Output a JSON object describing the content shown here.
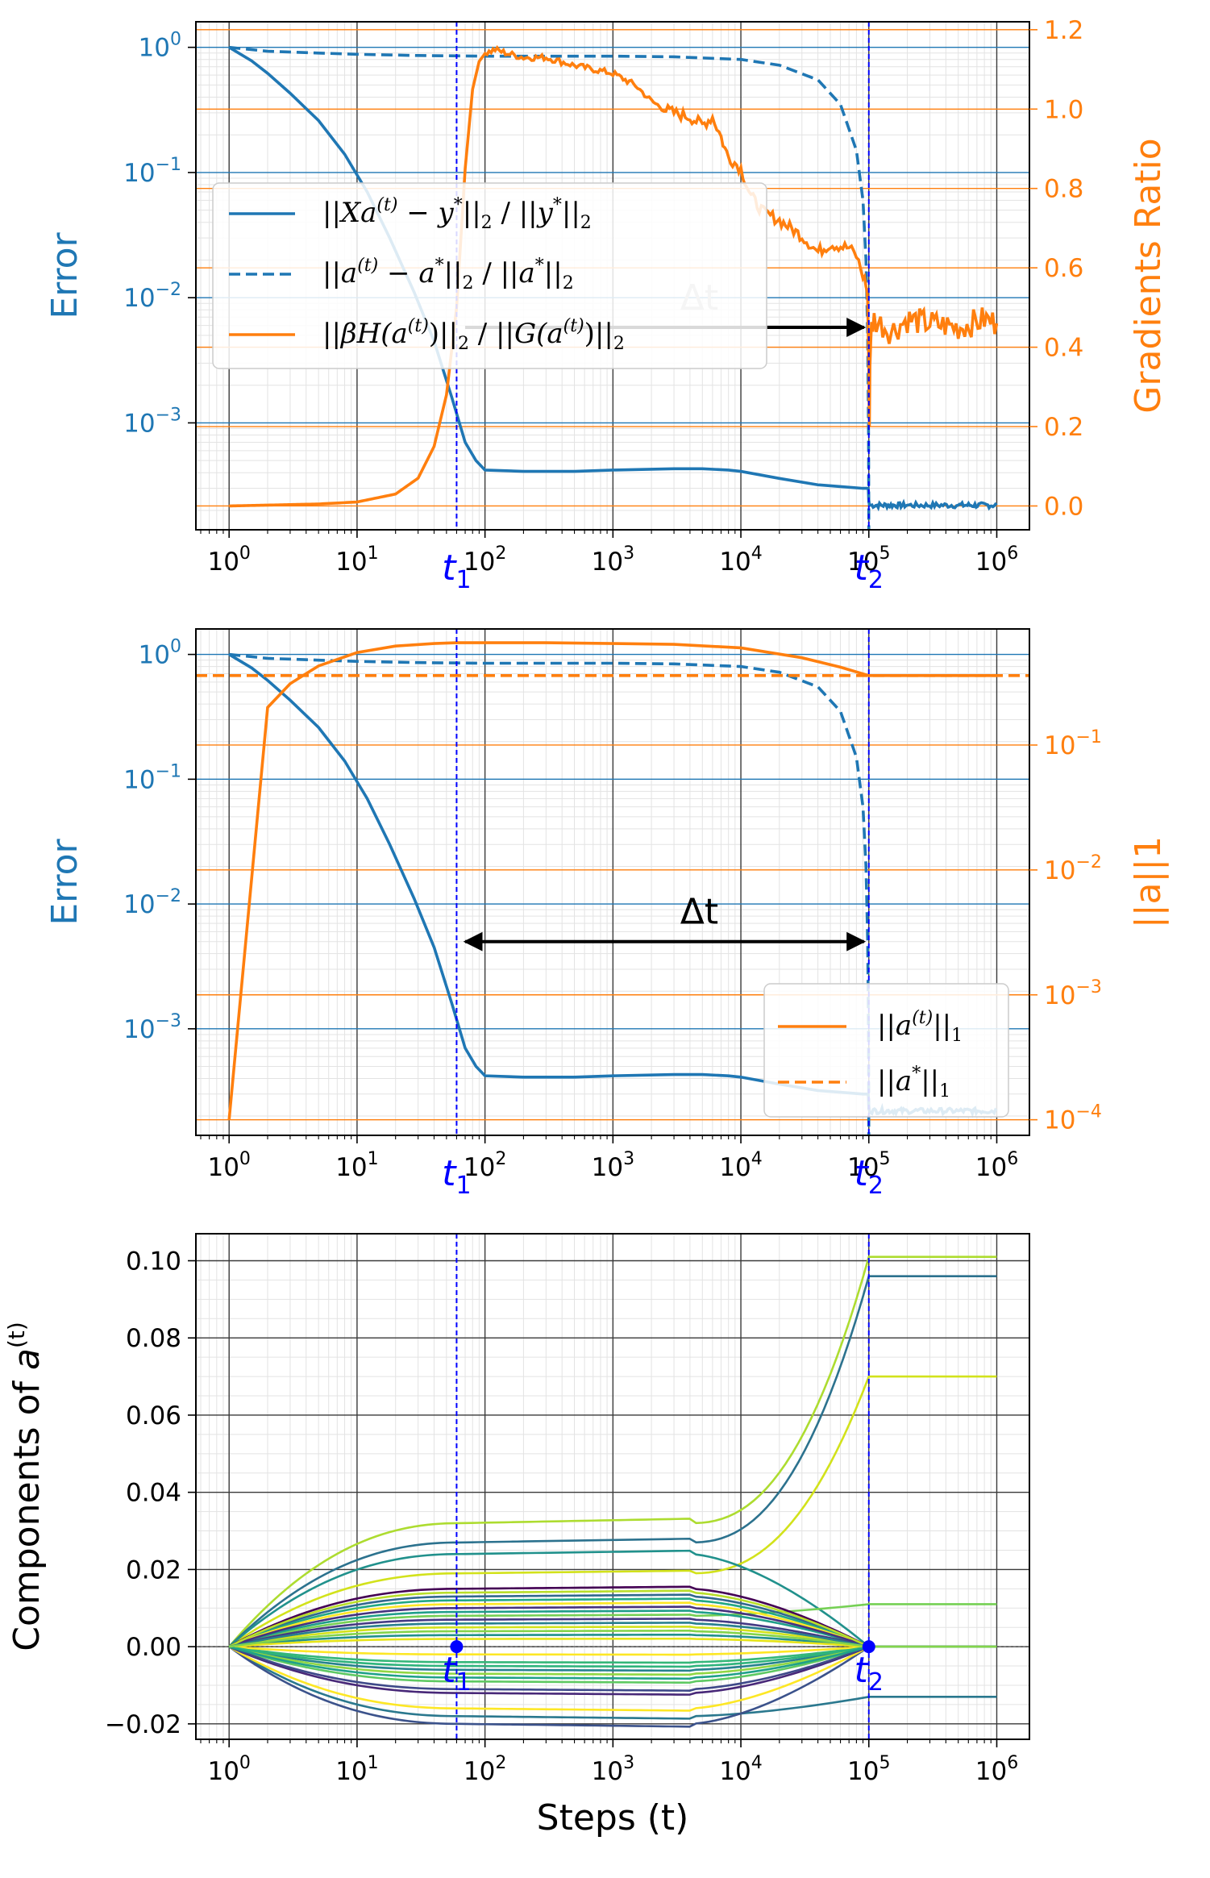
{
  "colors": {
    "blue": "#1f77b4",
    "orange": "#ff7f0e",
    "marker": "#0000ff",
    "grid_major": "#3a3a3a",
    "grid_minor": "#e3e3e3"
  },
  "chart_data": [
    {
      "type": "line",
      "xscale": "log",
      "xlim": [
        0.55,
        1800000
      ],
      "y_left": {
        "label": "Error",
        "scale": "log",
        "lim": [
          0.00014,
          1.6
        ],
        "ticks": [
          1,
          0.1,
          0.01,
          0.001
        ],
        "tick_labels": [
          "10^0",
          "10^-1",
          "10^-2",
          "10^-3"
        ]
      },
      "y_right": {
        "label": "Gradients Ratio",
        "scale": "linear",
        "lim": [
          -0.06,
          1.22
        ],
        "ticks": [
          0,
          0.2,
          0.4,
          0.6,
          0.8,
          1.0,
          1.2
        ],
        "tick_labels": [
          "0.0",
          "0.2",
          "0.4",
          "0.6",
          "0.8",
          "1.0",
          "1.2"
        ]
      },
      "x_ticks": [
        1,
        10,
        100,
        1000,
        10000,
        100000,
        1000000
      ],
      "x_tick_labels": [
        "10^0",
        "10^1",
        "10^2",
        "10^3",
        "10^4",
        "10^5",
        "10^6"
      ],
      "vlines": [
        {
          "label": "t1",
          "x": 60
        },
        {
          "label": "t2",
          "x": 100000
        }
      ],
      "arrow": {
        "label": "Δt",
        "x_from": 70,
        "x_to": 100000,
        "y": 0.45,
        "axis": "right"
      },
      "legend": {
        "position": "center-left",
        "entries": [
          "||Xa(t) − y*||2 / ||y*||2",
          "||a(t) − a*||2 / ||a*||2",
          "||βH(a(t))||2 / ||G(a(t))||2"
        ]
      },
      "series": [
        {
          "name": "||Xa(t) − y*||2 / ||y*||2",
          "axis": "left",
          "style": "solid",
          "x": [
            1,
            1.5,
            2,
            3,
            5,
            8,
            12,
            18,
            28,
            40,
            55,
            70,
            85,
            100,
            200,
            500,
            1000,
            3000,
            5000,
            8000,
            10000,
            20000,
            40000,
            60000,
            90000,
            99000,
            100000,
            101000,
            200000,
            500000,
            1000000
          ],
          "y": [
            1,
            0.78,
            0.62,
            0.43,
            0.26,
            0.14,
            0.07,
            0.03,
            0.011,
            0.0045,
            0.0016,
            0.0007,
            0.0005,
            0.00042,
            0.00041,
            0.00041,
            0.00042,
            0.00043,
            0.00043,
            0.00042,
            0.00041,
            0.00036,
            0.00032,
            0.00031,
            0.0003,
            0.0003,
            0.00024,
            0.00022,
            0.00022,
            0.00022,
            0.00022
          ]
        },
        {
          "name": "||a(t) − a*||2 / ||a*||2",
          "axis": "left",
          "style": "dashed",
          "x": [
            1,
            2,
            5,
            10,
            30,
            100,
            300,
            1000,
            3000,
            10000,
            20000,
            40000,
            60000,
            80000,
            90000,
            95000,
            98000,
            99500,
            100000
          ],
          "y": [
            1,
            0.93,
            0.9,
            0.88,
            0.86,
            0.85,
            0.85,
            0.85,
            0.84,
            0.8,
            0.72,
            0.55,
            0.35,
            0.15,
            0.06,
            0.02,
            0.005,
            0.0008,
            0.00014
          ]
        },
        {
          "name": "||βH(a(t))||2 / ||G(a(t))||2",
          "axis": "right",
          "style": "solid",
          "x": [
            1,
            5,
            10,
            20,
            30,
            40,
            50,
            60,
            70,
            80,
            90,
            100,
            120,
            150,
            200,
            300,
            500,
            1000,
            1500,
            2000,
            2500,
            3000,
            4000,
            5000,
            6000,
            7000,
            7500,
            8000,
            10000,
            12000,
            15000,
            20000,
            30000,
            40000,
            50000,
            70000,
            80000,
            90000,
            95000,
            98000,
            100000,
            101000,
            102000,
            105000,
            110000,
            150000,
            200000,
            300000,
            500000,
            800000,
            1000000
          ],
          "y": [
            0.0,
            0.005,
            0.01,
            0.03,
            0.07,
            0.15,
            0.28,
            0.5,
            0.85,
            1.05,
            1.12,
            1.14,
            1.15,
            1.14,
            1.13,
            1.13,
            1.11,
            1.09,
            1.06,
            1.02,
            1.0,
            0.99,
            0.98,
            0.96,
            0.98,
            0.93,
            0.9,
            0.88,
            0.85,
            0.78,
            0.74,
            0.72,
            0.68,
            0.64,
            0.66,
            0.65,
            0.63,
            0.58,
            0.56,
            0.52,
            0.33,
            0.2,
            0.36,
            0.45,
            0.47,
            0.44,
            0.47,
            0.46,
            0.45,
            0.47,
            0.46
          ]
        }
      ]
    },
    {
      "type": "line",
      "xscale": "log",
      "xlim": [
        0.55,
        1800000
      ],
      "y_left": {
        "label": "Error",
        "scale": "log",
        "lim": [
          0.00014,
          1.6
        ],
        "ticks": [
          1,
          0.1,
          0.01,
          0.001
        ],
        "tick_labels": [
          "10^0",
          "10^-1",
          "10^-2",
          "10^-3"
        ]
      },
      "y_right": {
        "label": "||a||1",
        "scale": "log",
        "lim": [
          7.5e-05,
          0.85
        ],
        "ticks": [
          0.1,
          0.01,
          0.001,
          0.0001
        ],
        "tick_labels": [
          "10^-1",
          "10^-2",
          "10^-3",
          "10^-4"
        ]
      },
      "x_ticks": [
        1,
        10,
        100,
        1000,
        10000,
        100000,
        1000000
      ],
      "x_tick_labels": [
        "10^0",
        "10^1",
        "10^2",
        "10^3",
        "10^4",
        "10^5",
        "10^6"
      ],
      "vlines": [
        {
          "label": "t1",
          "x": 60
        },
        {
          "label": "t2",
          "x": 100000
        }
      ],
      "arrow": {
        "label": "Δt",
        "x_from": 70,
        "x_to": 100000,
        "y": 0.005,
        "axis": "left"
      },
      "legend": {
        "position": "lower-right",
        "entries": [
          "||a(t)||1",
          "||a*||1"
        ]
      },
      "series": [
        {
          "name": "error_solid",
          "axis": "left",
          "style": "solid",
          "x": [
            1,
            1.5,
            2,
            3,
            5,
            8,
            12,
            18,
            28,
            40,
            55,
            70,
            85,
            100,
            200,
            500,
            1000,
            3000,
            5000,
            8000,
            10000,
            20000,
            40000,
            60000,
            90000,
            99000,
            100000,
            101000,
            200000,
            500000,
            1000000
          ],
          "y": [
            1,
            0.78,
            0.62,
            0.43,
            0.26,
            0.14,
            0.07,
            0.03,
            0.011,
            0.0045,
            0.0016,
            0.0007,
            0.0005,
            0.00042,
            0.00041,
            0.00041,
            0.00042,
            0.00043,
            0.00043,
            0.00042,
            0.00041,
            0.00036,
            0.00032,
            0.00031,
            0.0003,
            0.0003,
            0.00024,
            0.00022,
            0.00022,
            0.00022,
            0.00022
          ]
        },
        {
          "name": "error_dashed",
          "axis": "left",
          "style": "dashed",
          "x": [
            1,
            2,
            5,
            10,
            30,
            100,
            300,
            1000,
            3000,
            10000,
            20000,
            40000,
            60000,
            80000,
            90000,
            95000,
            98000,
            99500,
            100000
          ],
          "y": [
            1,
            0.93,
            0.9,
            0.88,
            0.86,
            0.85,
            0.85,
            0.85,
            0.84,
            0.8,
            0.72,
            0.55,
            0.35,
            0.15,
            0.06,
            0.02,
            0.005,
            0.0008,
            0.00014
          ]
        },
        {
          "name": "||a(t)||1",
          "axis": "right",
          "style": "solid",
          "x": [
            1,
            2,
            3,
            5,
            10,
            20,
            40,
            60,
            100,
            300,
            1000,
            3000,
            10000,
            30000,
            60000,
            100000,
            1000000
          ],
          "y": [
            0.0001,
            0.2,
            0.31,
            0.43,
            0.55,
            0.62,
            0.65,
            0.66,
            0.66,
            0.66,
            0.65,
            0.64,
            0.6,
            0.5,
            0.42,
            0.36,
            0.36
          ]
        },
        {
          "name": "||a*||1",
          "axis": "right",
          "style": "dashed",
          "x": [
            0.55,
            1800000
          ],
          "y": [
            0.36,
            0.36
          ]
        }
      ]
    },
    {
      "type": "line",
      "xscale": "log",
      "xlim": [
        0.55,
        1800000
      ],
      "xlabel": "Steps (t)",
      "y_left": {
        "label": "Components of a(t)",
        "scale": "linear",
        "lim": [
          -0.024,
          0.107
        ],
        "ticks": [
          -0.02,
          0.0,
          0.02,
          0.04,
          0.06,
          0.08,
          0.1
        ],
        "tick_labels": [
          "−0.02",
          "0.00",
          "0.02",
          "0.04",
          "0.06",
          "0.08",
          "0.10"
        ]
      },
      "x_ticks": [
        1,
        10,
        100,
        1000,
        10000,
        100000,
        1000000
      ],
      "x_tick_labels": [
        "10^0",
        "10^1",
        "10^2",
        "10^3",
        "10^4",
        "10^5",
        "10^6"
      ],
      "vlines": [
        {
          "label": "t1",
          "x": 60
        },
        {
          "label": "t2",
          "x": 100000
        }
      ],
      "points": [
        {
          "x": 60,
          "y": 0
        },
        {
          "x": 100000,
          "y": 0
        }
      ],
      "series": [
        {
          "color": "#addc30",
          "plateau": 0.032,
          "final": 0.101
        },
        {
          "color": "#2c728e",
          "plateau": 0.027,
          "final": 0.096
        },
        {
          "color": "#d2e21b",
          "plateau": 0.019,
          "final": 0.07
        },
        {
          "color": "#21918c",
          "plateau": 0.024,
          "final": 0.0
        },
        {
          "color": "#75d054",
          "plateau": 0.008,
          "final": 0.011
        },
        {
          "color": "#2a788e",
          "plateau": -0.018,
          "final": -0.013
        },
        {
          "color": "#3b528b",
          "plateau": -0.02,
          "final": 0.0
        },
        {
          "color": "#fde725",
          "plateau": -0.016,
          "final": 0.0
        },
        {
          "color": "#440154",
          "plateau": 0.015,
          "final": 0.0
        },
        {
          "color": "#482878",
          "plateau": -0.012,
          "final": 0.0
        },
        {
          "color": "#31688e",
          "plateau": 0.013,
          "final": 0.0
        },
        {
          "color": "#22a884",
          "plateau": 0.012,
          "final": 0.0
        },
        {
          "color": "#5ec962",
          "plateau": -0.009,
          "final": 0.0
        },
        {
          "color": "#fde725",
          "plateau": 0.011,
          "final": 0.0
        },
        {
          "color": "#26828e",
          "plateau": -0.006,
          "final": 0.0
        },
        {
          "color": "#1f9e89",
          "plateau": 0.009,
          "final": 0.0
        },
        {
          "color": "#35b779",
          "plateau": -0.004,
          "final": 0.0
        },
        {
          "color": "#d2e21b",
          "plateau": 0.005,
          "final": 0.0
        },
        {
          "color": "#443983",
          "plateau": 0.007,
          "final": 0.0
        },
        {
          "color": "#90d743",
          "plateau": -0.007,
          "final": 0.0
        },
        {
          "color": "#21918c",
          "plateau": 0.003,
          "final": 0.0
        },
        {
          "color": "#fde725",
          "plateau": -0.002,
          "final": 0.0
        },
        {
          "color": "#3e4989",
          "plateau": -0.011,
          "final": 0.0
        },
        {
          "color": "#46327e",
          "plateau": 0.01,
          "final": 0.0
        },
        {
          "color": "#b8de29",
          "plateau": 0.014,
          "final": 0.0
        },
        {
          "color": "#2fb47c",
          "plateau": -0.005,
          "final": 0.0
        },
        {
          "color": "#e5e419",
          "plateau": 0.002,
          "final": 0.0
        },
        {
          "color": "#277f8e",
          "plateau": 0.006,
          "final": 0.0
        },
        {
          "color": "#1fa188",
          "plateau": -0.008,
          "final": 0.0
        },
        {
          "color": "#84d44b",
          "plateau": 0.004,
          "final": 0.0
        }
      ]
    }
  ]
}
